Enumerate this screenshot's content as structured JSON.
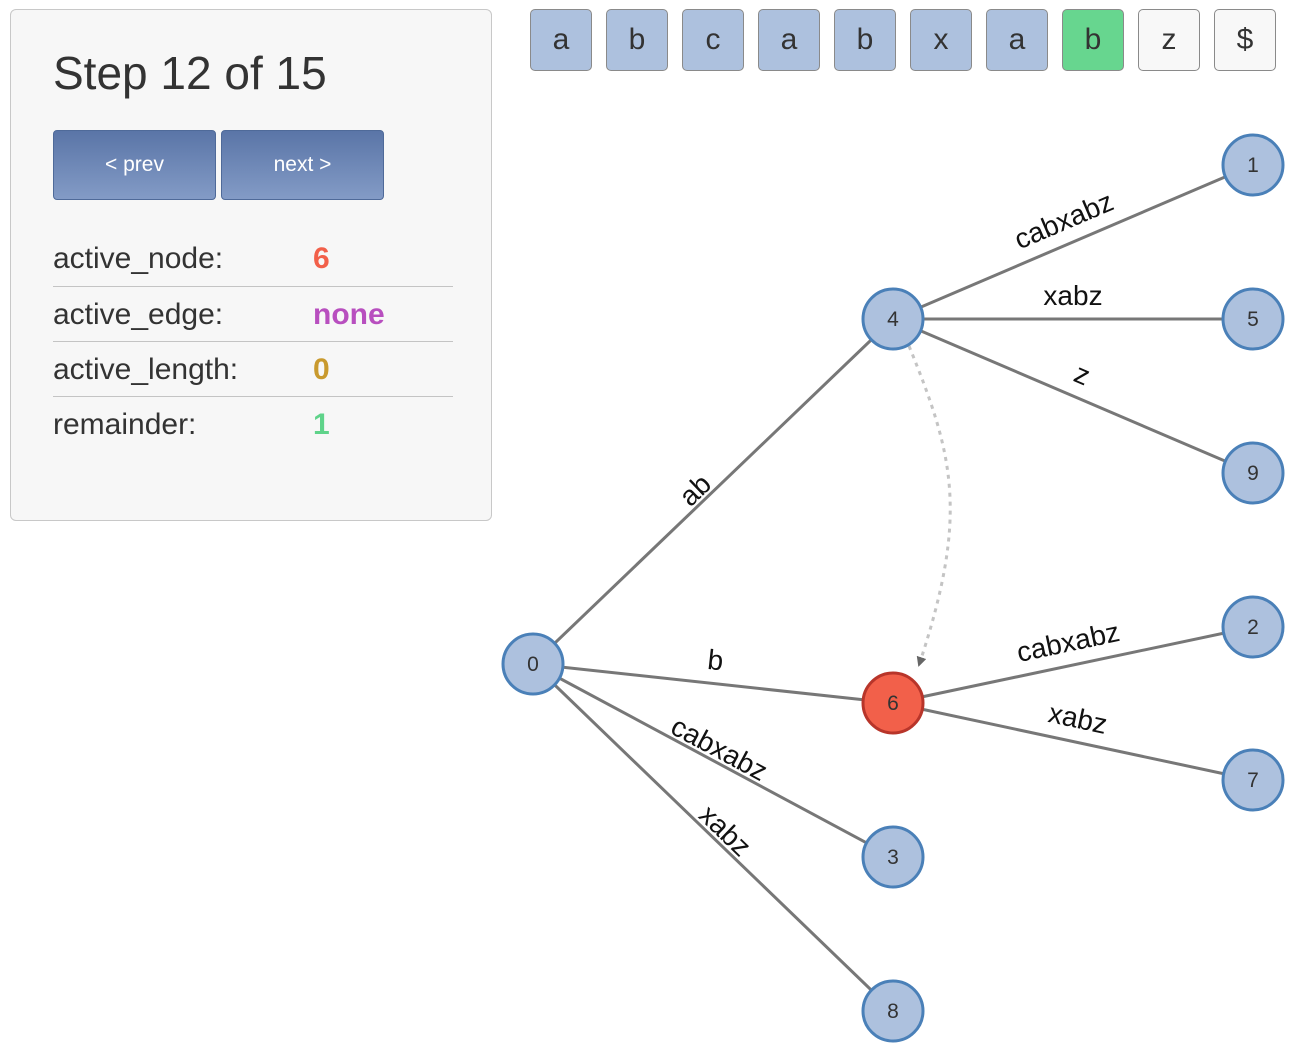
{
  "panel": {
    "title": "Step 12 of 15",
    "prev_label": "< prev",
    "next_label": "next >",
    "state": [
      {
        "key": "active_node:",
        "value": "6",
        "color": "#f2604a"
      },
      {
        "key": "active_edge:",
        "value": "none",
        "color": "#b84fbf"
      },
      {
        "key": "active_length:",
        "value": "0",
        "color": "#c99a2e"
      },
      {
        "key": "remainder:",
        "value": "1",
        "color": "#5fd38a"
      }
    ]
  },
  "tape": {
    "cells": [
      {
        "char": "a",
        "state": "processed"
      },
      {
        "char": "b",
        "state": "processed"
      },
      {
        "char": "c",
        "state": "processed"
      },
      {
        "char": "a",
        "state": "processed"
      },
      {
        "char": "b",
        "state": "processed"
      },
      {
        "char": "x",
        "state": "processed"
      },
      {
        "char": "a",
        "state": "processed"
      },
      {
        "char": "b",
        "state": "current"
      },
      {
        "char": "z",
        "state": "pending"
      },
      {
        "char": "$",
        "state": "pending"
      }
    ],
    "colors": {
      "processed": "#adc1de",
      "current": "#67d68f",
      "pending": "#f8f8f8"
    }
  },
  "tree": {
    "colors": {
      "node_fill": "#adc1de",
      "node_stroke": "#4a80b8",
      "active_fill": "#f2604a",
      "active_stroke": "#b8352a",
      "edge": "#777777",
      "suffix_link": "#c4c4c4"
    },
    "nodes": [
      {
        "id": "0",
        "active": false
      },
      {
        "id": "1",
        "active": false
      },
      {
        "id": "2",
        "active": false
      },
      {
        "id": "3",
        "active": false
      },
      {
        "id": "4",
        "active": false
      },
      {
        "id": "5",
        "active": false
      },
      {
        "id": "6",
        "active": true
      },
      {
        "id": "7",
        "active": false
      },
      {
        "id": "8",
        "active": false
      },
      {
        "id": "9",
        "active": false
      }
    ],
    "edges": [
      {
        "from": "0",
        "to": "4",
        "label": "ab"
      },
      {
        "from": "0",
        "to": "6",
        "label": "b"
      },
      {
        "from": "0",
        "to": "3",
        "label": "cabxabz"
      },
      {
        "from": "0",
        "to": "8",
        "label": "xabz"
      },
      {
        "from": "4",
        "to": "1",
        "label": "cabxabz"
      },
      {
        "from": "4",
        "to": "5",
        "label": "xabz"
      },
      {
        "from": "4",
        "to": "9",
        "label": "z"
      },
      {
        "from": "6",
        "to": "2",
        "label": "cabxabz"
      },
      {
        "from": "6",
        "to": "7",
        "label": "xabz"
      }
    ],
    "suffix_links": [
      {
        "from": "4",
        "to": "6"
      }
    ]
  }
}
